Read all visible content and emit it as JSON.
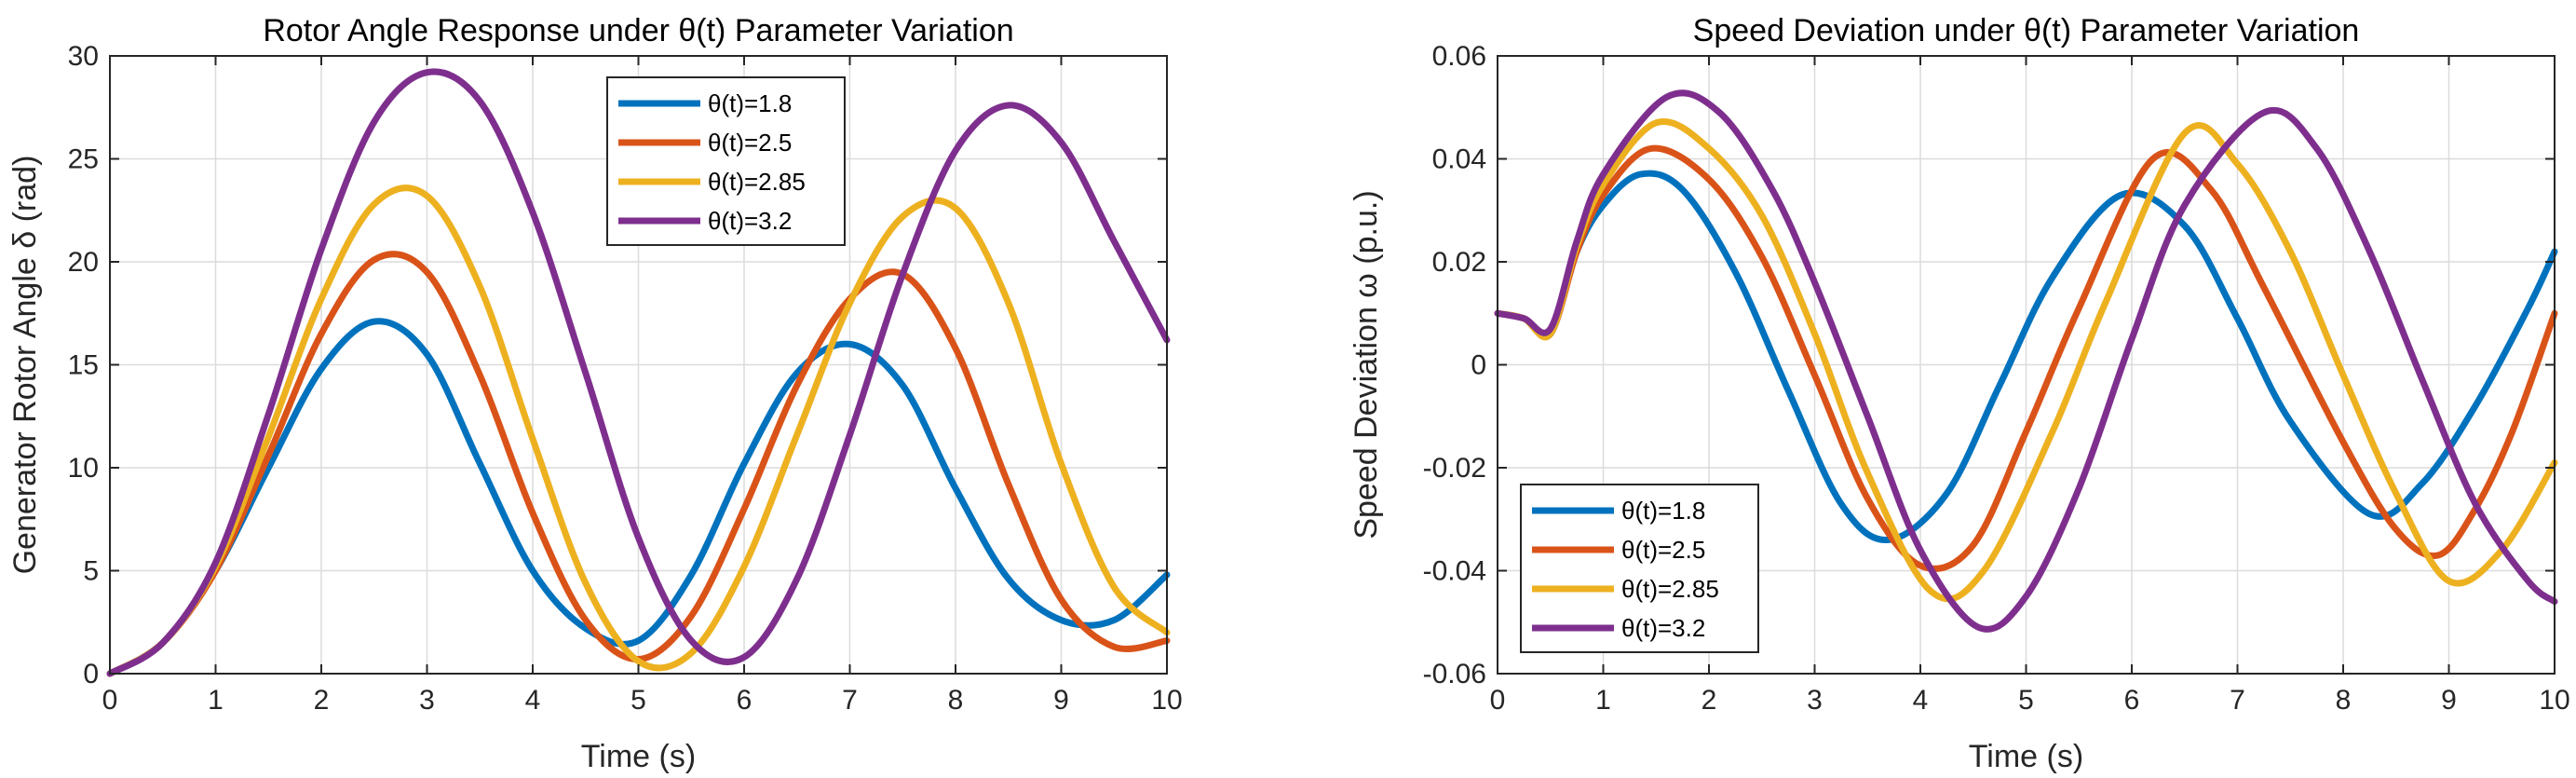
{
  "figure": {
    "layout": "1x2 subplots"
  },
  "chart_data": [
    {
      "type": "line",
      "title": "Rotor Angle Response under θ(t) Parameter Variation",
      "xlabel": "Time (s)",
      "ylabel": "Generator Rotor Angle δ (rad)",
      "xlim": [
        0,
        10
      ],
      "ylim": [
        0,
        30
      ],
      "xticks": [
        "0",
        "1",
        "2",
        "3",
        "4",
        "5",
        "6",
        "7",
        "8",
        "9",
        "10"
      ],
      "yticks": [
        "0",
        "5",
        "10",
        "15",
        "20",
        "25",
        "30"
      ],
      "grid": true,
      "legend_position": "top-center",
      "series": [
        {
          "name": "θ(t)=1.8",
          "color": "#0072BD",
          "x": [
            0,
            0.5,
            1,
            1.5,
            2,
            2.5,
            3,
            3.5,
            4,
            4.5,
            5,
            5.5,
            6,
            6.5,
            7,
            7.5,
            8,
            8.5,
            9,
            9.5,
            10
          ],
          "y": [
            0,
            1.5,
            5.0,
            10.0,
            14.8,
            17.1,
            15.5,
            10.2,
            5.0,
            2.2,
            1.6,
            4.8,
            10.2,
            14.6,
            16.0,
            14.0,
            9.0,
            4.6,
            2.6,
            2.6,
            4.8
          ]
        },
        {
          "name": "θ(t)=2.5",
          "color": "#D95319",
          "x": [
            0,
            0.5,
            1,
            1.5,
            2,
            2.5,
            3,
            3.5,
            4,
            4.5,
            5,
            5.5,
            6,
            6.5,
            7,
            7.5,
            8,
            8.5,
            9,
            9.5,
            10
          ],
          "y": [
            0,
            1.5,
            5.0,
            10.6,
            16.5,
            20.1,
            19.5,
            14.5,
            7.8,
            2.6,
            0.7,
            2.8,
            8.0,
            14.0,
            18.2,
            19.4,
            15.8,
            9.2,
            3.6,
            1.3,
            1.6
          ]
        },
        {
          "name": "θ(t)=2.85",
          "color": "#EDB120",
          "x": [
            0,
            0.5,
            1,
            1.5,
            2,
            2.5,
            3,
            3.5,
            4,
            4.5,
            5,
            5.5,
            6,
            6.5,
            7,
            7.5,
            8,
            8.5,
            9,
            9.5,
            10
          ],
          "y": [
            0,
            1.5,
            5.2,
            11.5,
            18.2,
            22.8,
            23.2,
            18.8,
            11.4,
            4.4,
            0.6,
            1.0,
            5.2,
            11.6,
            18.0,
            22.2,
            22.6,
            18.0,
            10.2,
            4.2,
            2.0
          ]
        },
        {
          "name": "θ(t)=3.2",
          "color": "#7E2F8E",
          "x": [
            0,
            0.5,
            1,
            1.5,
            2,
            2.5,
            3,
            3.5,
            4,
            4.5,
            5,
            5.5,
            6,
            6.5,
            7,
            7.5,
            8,
            8.5,
            9,
            9.5,
            10
          ],
          "y": [
            0,
            1.5,
            5.4,
            12.6,
            20.6,
            26.8,
            29.2,
            27.8,
            22.4,
            14.6,
            6.6,
            1.6,
            0.8,
            4.6,
            11.6,
            19.4,
            25.4,
            27.6,
            25.8,
            21.0,
            16.2
          ]
        }
      ]
    },
    {
      "type": "line",
      "title": "Speed Deviation under θ(t) Parameter Variation",
      "xlabel": "Time (s)",
      "ylabel": "Speed Deviation ω (p.u.)",
      "xlim": [
        0,
        10
      ],
      "ylim": [
        -0.06,
        0.06
      ],
      "xticks": [
        "0",
        "1",
        "2",
        "3",
        "4",
        "5",
        "6",
        "7",
        "8",
        "9",
        "10"
      ],
      "yticks": [
        "-0.06",
        "-0.04",
        "-0.02",
        "0",
        "0.02",
        "0.04",
        "0.06"
      ],
      "grid": true,
      "legend_position": "bottom-left",
      "series": [
        {
          "name": "θ(t)=1.8",
          "color": "#0072BD",
          "x": [
            0,
            0.25,
            0.5,
            0.75,
            1,
            1.35,
            1.75,
            2.25,
            2.75,
            3.25,
            3.7,
            4.25,
            4.75,
            5.25,
            5.9,
            6.5,
            7,
            7.5,
            8.25,
            8.75,
            9.25,
            9.75,
            10
          ],
          "y": [
            0.01,
            0.009,
            0.006,
            0.022,
            0.031,
            0.037,
            0.034,
            0.018,
            -0.005,
            -0.027,
            -0.034,
            -0.025,
            -0.004,
            0.017,
            0.033,
            0.027,
            0.009,
            -0.011,
            -0.029,
            -0.023,
            -0.008,
            0.011,
            0.022
          ]
        },
        {
          "name": "θ(t)=2.5",
          "color": "#D95319",
          "x": [
            0,
            0.25,
            0.5,
            0.75,
            1,
            1.45,
            2,
            2.5,
            3,
            3.5,
            4,
            4.5,
            5,
            5.5,
            6.2,
            6.75,
            7.25,
            8,
            8.5,
            8.9,
            9.25,
            9.6,
            10
          ],
          "y": [
            0.01,
            0.009,
            0.006,
            0.022,
            0.033,
            0.042,
            0.036,
            0.021,
            -0.002,
            -0.026,
            -0.039,
            -0.035,
            -0.013,
            0.011,
            0.04,
            0.034,
            0.015,
            -0.015,
            -0.032,
            -0.037,
            -0.028,
            -0.013,
            0.01
          ]
        },
        {
          "name": "θ(t)=2.85",
          "color": "#EDB120",
          "x": [
            0,
            0.25,
            0.5,
            0.75,
            1,
            1.5,
            2,
            2.5,
            3,
            3.5,
            4.1,
            4.6,
            5.25,
            5.75,
            6.5,
            7,
            7.5,
            8,
            8.5,
            9,
            9.5,
            10
          ],
          "y": [
            0.01,
            0.009,
            0.006,
            0.023,
            0.035,
            0.047,
            0.042,
            0.029,
            0.006,
            -0.021,
            -0.044,
            -0.04,
            -0.013,
            0.012,
            0.045,
            0.039,
            0.022,
            -0.002,
            -0.025,
            -0.042,
            -0.036,
            -0.019
          ]
        },
        {
          "name": "θ(t)=3.2",
          "color": "#7E2F8E",
          "x": [
            0,
            0.25,
            0.5,
            0.75,
            1,
            1.6,
            2.1,
            2.6,
            3,
            3.5,
            4,
            4.55,
            5,
            5.5,
            6,
            6.5,
            7.25,
            7.75,
            8.25,
            8.75,
            9.25,
            9.75,
            10
          ],
          "y": [
            0.01,
            0.009,
            0.007,
            0.024,
            0.037,
            0.052,
            0.049,
            0.034,
            0.016,
            -0.01,
            -0.036,
            -0.051,
            -0.045,
            -0.024,
            0.005,
            0.031,
            0.049,
            0.042,
            0.022,
            -0.003,
            -0.027,
            -0.042,
            -0.046
          ]
        }
      ]
    }
  ]
}
